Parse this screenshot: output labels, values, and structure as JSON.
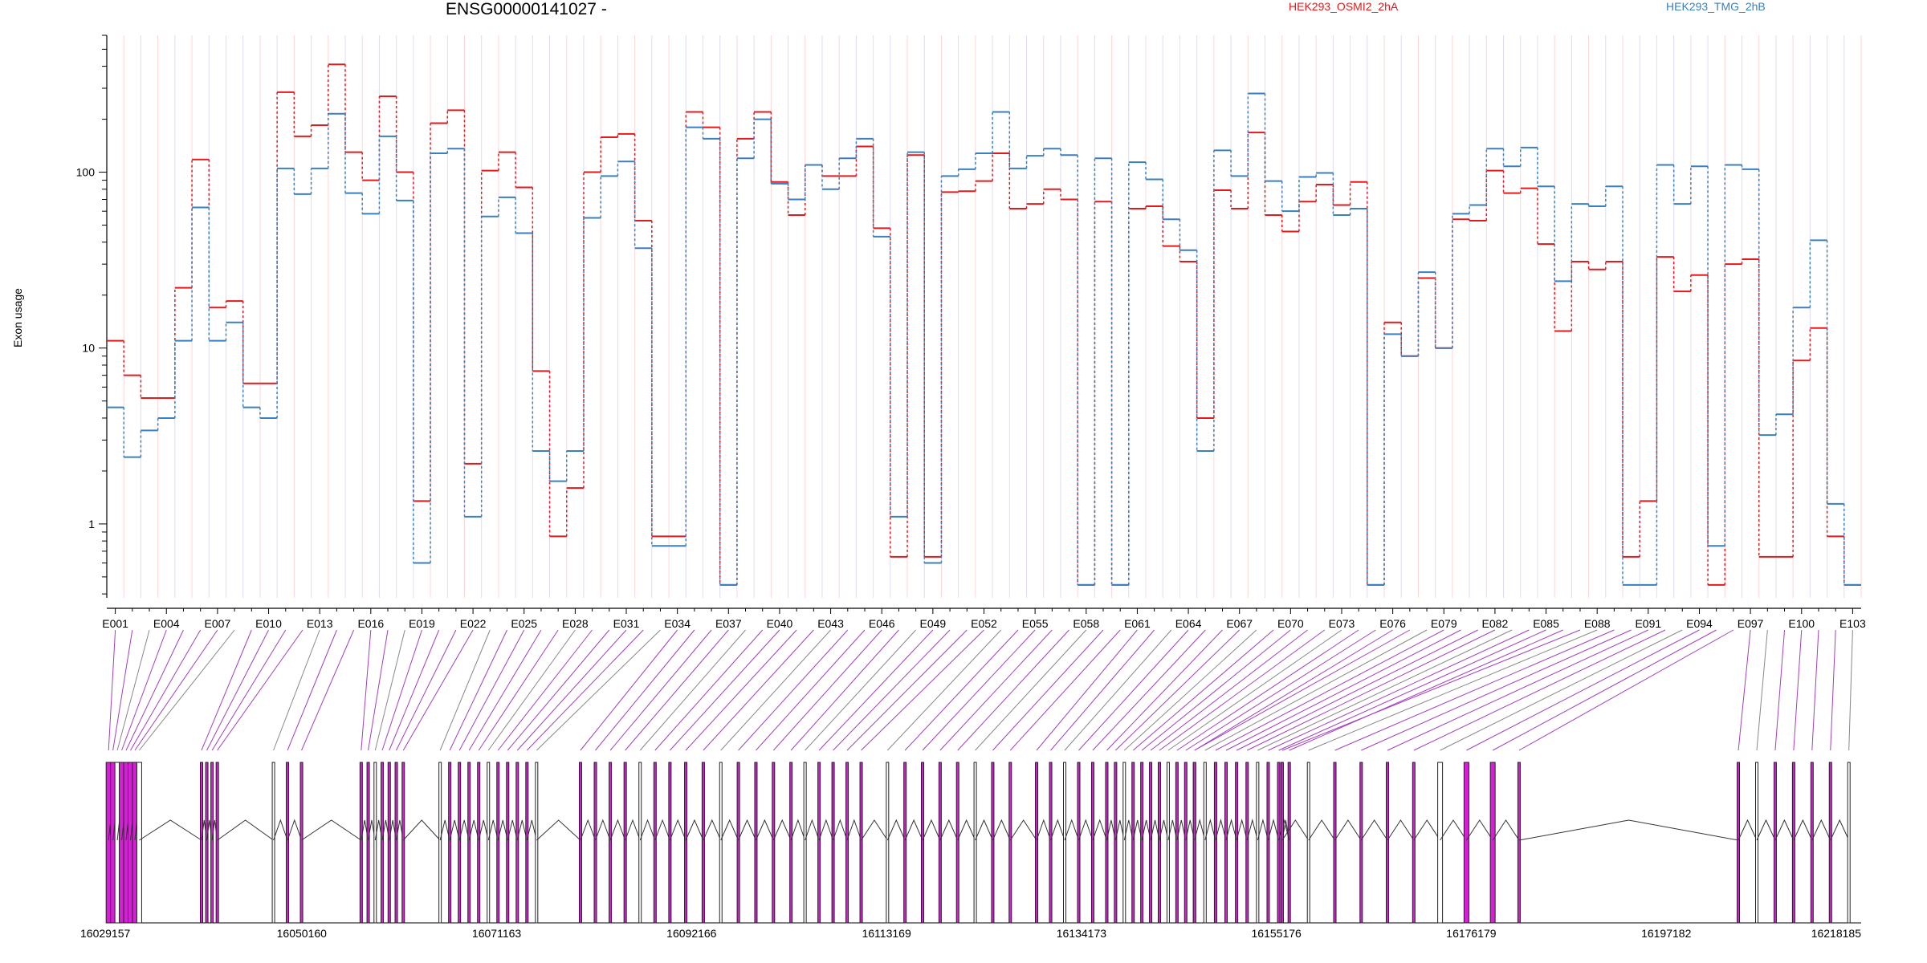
{
  "title": "ENSG00000141027 -",
  "ylabel": "Exon usage",
  "legend": [
    {
      "name": "HEK293_OSMI2_2hA",
      "color": "#e31a1c"
    },
    {
      "name": "HEK293_TMG_2hB",
      "color": "#3a7fbf"
    }
  ],
  "chart_data": {
    "type": "line",
    "yscale": "log",
    "ylim": [
      0.38,
      600
    ],
    "yticks": [
      {
        "v": 1,
        "label": "1"
      },
      {
        "v": 10,
        "label": "10"
      },
      {
        "v": 100,
        "label": "100"
      }
    ],
    "exon_labels": [
      "E001",
      "E004",
      "E007",
      "E010",
      "E013",
      "E016",
      "E019",
      "E022",
      "E025",
      "E028",
      "E031",
      "E034",
      "E037",
      "E040",
      "E043",
      "E046",
      "E049",
      "E052",
      "E055",
      "E058",
      "E061",
      "E064",
      "E067",
      "E070",
      "E073",
      "E076",
      "E079",
      "E082",
      "E085",
      "E088",
      "E091",
      "E094",
      "E097",
      "E100",
      "E103"
    ],
    "series": [
      {
        "name": "HEK293_OSMI2_2hA",
        "color": "#e31a1c",
        "values": [
          11,
          7,
          5.2,
          5.2,
          22,
          118,
          17,
          18.5,
          6.3,
          6.3,
          285,
          160,
          185,
          410,
          130,
          90,
          270,
          100,
          1.35,
          190,
          225,
          2.2,
          102,
          130,
          82,
          7.4,
          0.85,
          1.6,
          100,
          158,
          165,
          53,
          0.85,
          0.85,
          220,
          180,
          0.45,
          155,
          220,
          88,
          57,
          110,
          95,
          95,
          140,
          48,
          0.65,
          125,
          0.65,
          77,
          78,
          89,
          128,
          62,
          66,
          80,
          70,
          0.45,
          68,
          0.45,
          62,
          64,
          38,
          31,
          4,
          79,
          62,
          168,
          57,
          46,
          68,
          85,
          65,
          88,
          0.45,
          14,
          9,
          25,
          10,
          54,
          53,
          102,
          76,
          81,
          39,
          12.5,
          31,
          28,
          31,
          0.65,
          1.35,
          33,
          21,
          26,
          0.45,
          30,
          32,
          0.65,
          0.65,
          8.5,
          13,
          0.85,
          0.45
        ]
      },
      {
        "name": "HEK293_TMG_2hB",
        "color": "#3a7fbf",
        "values": [
          4.6,
          2.4,
          3.4,
          4,
          11,
          63,
          11,
          14,
          4.6,
          4,
          105,
          75,
          105,
          215,
          76,
          58,
          160,
          69,
          0.6,
          128,
          136,
          1.1,
          56,
          72,
          45,
          2.6,
          1.75,
          2.6,
          55,
          95,
          115,
          37,
          0.75,
          0.75,
          180,
          155,
          0.45,
          120,
          200,
          86,
          70,
          110,
          80,
          120,
          155,
          43,
          1.1,
          130,
          0.6,
          95,
          104,
          128,
          220,
          105,
          124,
          136,
          125,
          0.45,
          120,
          0.45,
          114,
          91,
          54,
          36,
          2.6,
          133,
          95,
          280,
          89,
          60,
          94,
          99,
          57,
          62,
          0.45,
          12,
          9,
          27,
          10,
          58,
          65,
          136,
          108,
          138,
          83,
          24,
          66,
          64,
          83,
          0.45,
          0.45,
          110,
          66,
          108,
          0.75,
          110,
          104,
          3.2,
          4.2,
          17,
          41,
          1.3,
          0.45
        ]
      }
    ],
    "coordinate_ticks": [
      "16029157",
      "16050160",
      "16071163",
      "16092166",
      "16113169",
      "16134173",
      "16155176",
      "16176179",
      "16197182",
      "16218185"
    ],
    "coordinate_range": [
      16029157,
      16218185
    ]
  }
}
